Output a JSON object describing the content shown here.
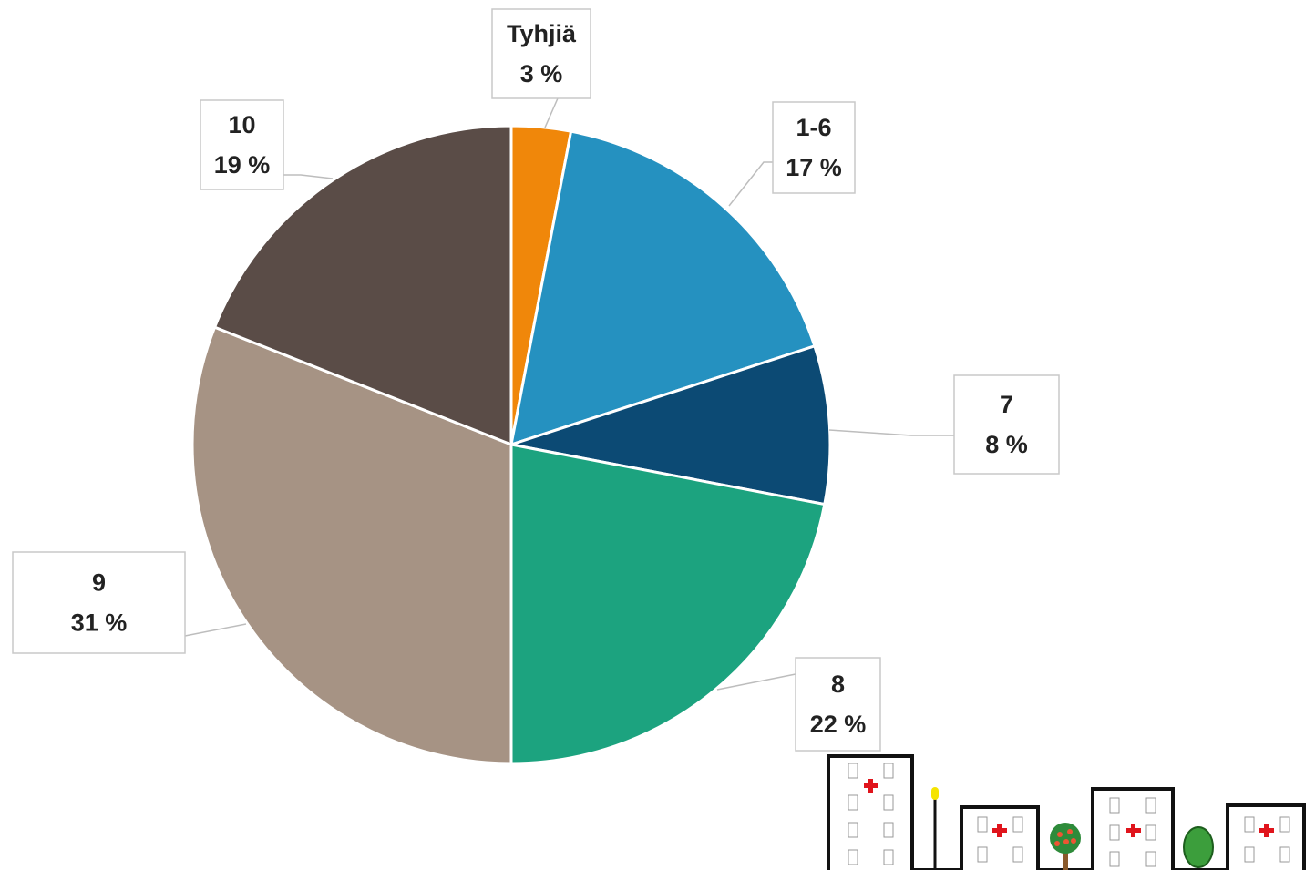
{
  "chart_data": {
    "type": "pie",
    "categories": [
      "Tyhjiä",
      "1-6",
      "7",
      "8",
      "9",
      "10"
    ],
    "values": [
      3,
      17,
      8,
      22,
      31,
      19
    ],
    "value_labels": [
      "3 %",
      "17 %",
      "8 %",
      "22 %",
      "31 %",
      "19 %"
    ],
    "colors": [
      "#f0870a",
      "#2591c0",
      "#0c4a74",
      "#1ca37f",
      "#a69384",
      "#5a4c47"
    ]
  }
}
